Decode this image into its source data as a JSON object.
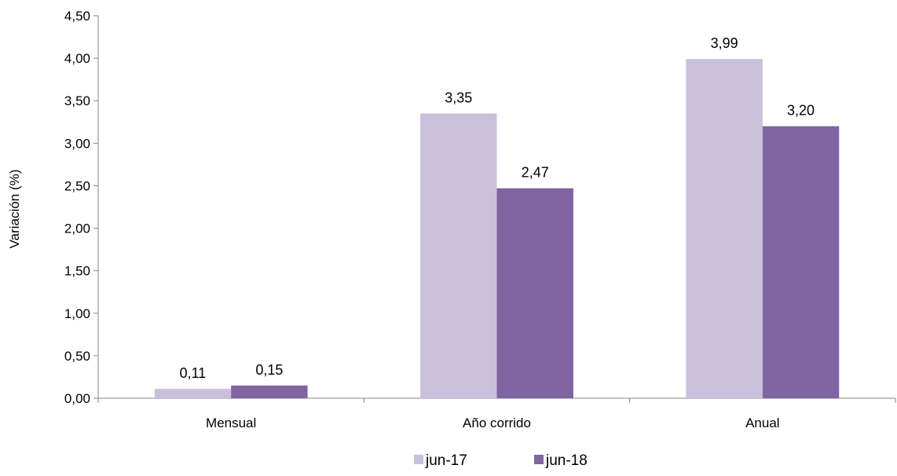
{
  "chart_data": {
    "type": "bar",
    "categories": [
      "Mensual",
      "Año corrido",
      "Anual"
    ],
    "series": [
      {
        "name": "jun-17",
        "values": [
          0.11,
          3.35,
          3.99
        ],
        "labels": [
          "0,11",
          "3,35",
          "3,99"
        ],
        "color": "#cbc0dc"
      },
      {
        "name": "jun-18",
        "values": [
          0.15,
          2.47,
          3.2
        ],
        "labels": [
          "0,15",
          "2,47",
          "3,20"
        ],
        "color": "#8064a2"
      }
    ],
    "ylabel": "Variación (%)",
    "xlabel": "",
    "ylim": [
      0,
      4.5
    ],
    "yticks": [
      "0,00",
      "0,50",
      "1,00",
      "1,50",
      "2,00",
      "2,50",
      "3,00",
      "3,50",
      "4,00",
      "4,50"
    ],
    "grid": false,
    "legend_position": "bottom"
  }
}
